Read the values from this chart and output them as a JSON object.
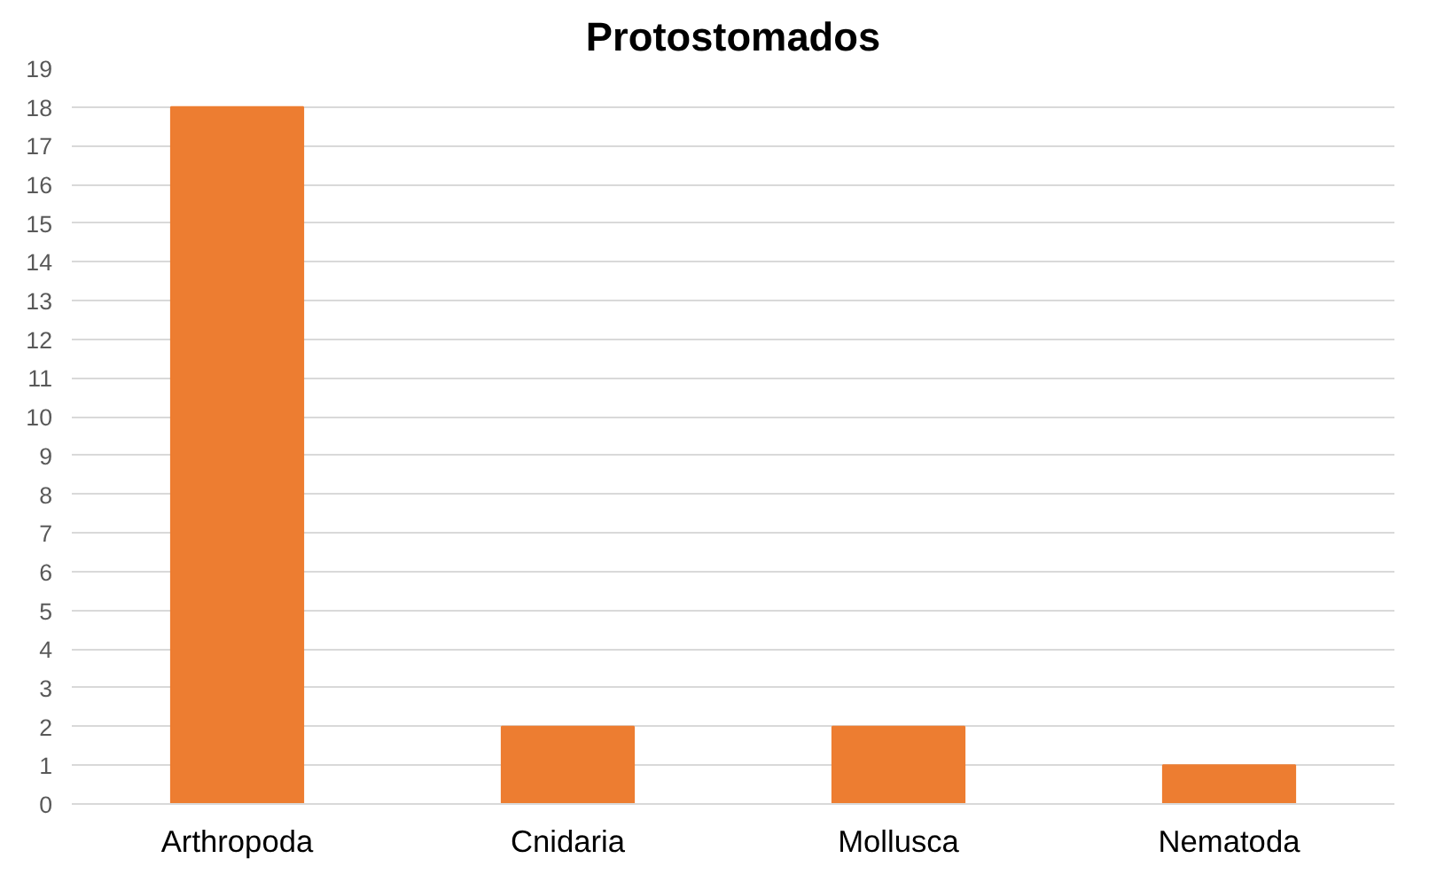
{
  "chart_data": {
    "type": "bar",
    "title": "Protostomados",
    "categories": [
      "Arthropoda",
      "Cnidaria",
      "Mollusca",
      "Nematoda"
    ],
    "values": [
      18,
      2,
      2,
      1
    ],
    "color": "#ed7d31",
    "ylim": [
      0,
      19
    ],
    "yticks": [
      0,
      1,
      2,
      3,
      4,
      5,
      6,
      7,
      8,
      9,
      10,
      11,
      12,
      13,
      14,
      15,
      16,
      17,
      18,
      19
    ],
    "grid": "y"
  }
}
